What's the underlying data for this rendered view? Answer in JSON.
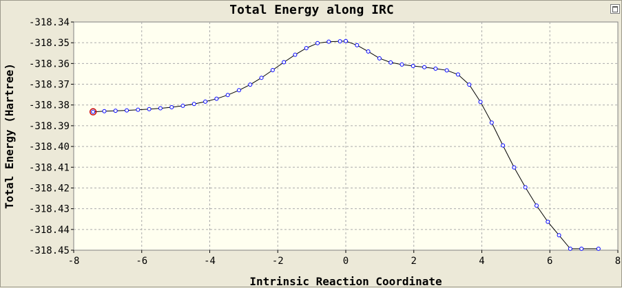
{
  "chart_data": {
    "type": "line",
    "title": "Total Energy along IRC",
    "xlabel": "Intrinsic Reaction Coordinate",
    "ylabel": "Total Energy (Hartree)",
    "xlim": [
      -8,
      8
    ],
    "ylim": [
      -318.45,
      -318.34
    ],
    "x_ticks": [
      -8,
      -6,
      -4,
      -2,
      0,
      2,
      4,
      6,
      8
    ],
    "y_ticks": [
      -318.34,
      -318.35,
      -318.36,
      -318.37,
      -318.38,
      -318.39,
      -318.4,
      -318.41,
      -318.42,
      -318.43,
      -318.44,
      -318.45
    ],
    "grid": true,
    "colors": {
      "plot_bg": "#fffff0",
      "line": "#000000",
      "marker": "#0000ff",
      "highlight": "#cc0000",
      "grid": "#aaaaaa"
    },
    "series": [
      {
        "x": [
          -7.43,
          -7.1,
          -6.77,
          -6.44,
          -6.11,
          -5.78,
          -5.45,
          -5.12,
          -4.79,
          -4.46,
          -4.13,
          -3.8,
          -3.47,
          -3.14,
          -2.81,
          -2.48,
          -2.15,
          -1.82,
          -1.49,
          -1.16,
          -0.83,
          -0.5,
          -0.17,
          0.0,
          0.33,
          0.66,
          0.99,
          1.32,
          1.65,
          1.98,
          2.31,
          2.64,
          2.97,
          3.3,
          3.63,
          3.96,
          4.29,
          4.62,
          4.95,
          5.28,
          5.61,
          5.94,
          6.27,
          6.6,
          6.93,
          7.43
        ],
        "y": [
          -318.3833,
          -318.383,
          -318.3828,
          -318.3826,
          -318.3823,
          -318.382,
          -318.3816,
          -318.3811,
          -318.3804,
          -318.3795,
          -318.3784,
          -318.377,
          -318.3752,
          -318.3729,
          -318.3702,
          -318.3669,
          -318.3632,
          -318.3594,
          -318.3558,
          -318.3526,
          -318.3502,
          -318.3495,
          -318.3493,
          -318.3492,
          -318.3512,
          -318.3542,
          -318.3575,
          -318.3595,
          -318.3605,
          -318.3612,
          -318.3618,
          -318.3625,
          -318.3633,
          -318.3653,
          -318.3702,
          -318.3785,
          -318.3885,
          -318.3995,
          -318.4101,
          -318.4197,
          -318.4285,
          -318.4363,
          -318.4428,
          -318.4493,
          -318.4493,
          -318.4493
        ],
        "highlight_index": 0
      }
    ]
  }
}
